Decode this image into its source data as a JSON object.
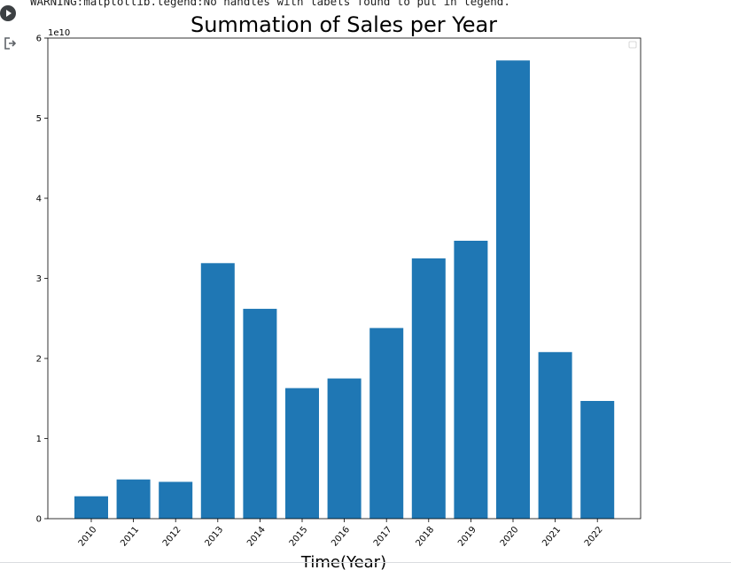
{
  "cell": {
    "output_text": "WARNING:matplotlib.legend:No handles with labels found to put in legend.",
    "run_icon": "play-circle-icon",
    "output_icon": "output-arrow-icon"
  },
  "colors": {
    "bar": "#1f77b4",
    "run_button": "#3c4043"
  },
  "chart_data": {
    "type": "bar",
    "title": "Summation of Sales per Year",
    "xlabel": "Time(Year)",
    "ylabel": "",
    "y_offset_label": "1e10",
    "categories": [
      "2010",
      "2011",
      "2012",
      "2013",
      "2014",
      "2015",
      "2016",
      "2017",
      "2018",
      "2019",
      "2020",
      "2021",
      "2022"
    ],
    "values": [
      2800000000.0,
      4900000000.0,
      4600000000.0,
      31900000000.0,
      26200000000.0,
      16300000000.0,
      17500000000.0,
      23800000000.0,
      32500000000.0,
      34700000000.0,
      57200000000.0,
      20800000000.0,
      14700000000.0
    ],
    "ylim": [
      0,
      60000000000.0
    ],
    "y_ticks": [
      0,
      10000000000.0,
      20000000000.0,
      30000000000.0,
      40000000000.0,
      50000000000.0,
      60000000000.0
    ],
    "y_tick_labels": [
      "0",
      "1",
      "2",
      "3",
      "4",
      "5",
      "6"
    ],
    "grid": false,
    "legend": "empty, top-right",
    "x_tick_rotation": "45 degrees"
  }
}
